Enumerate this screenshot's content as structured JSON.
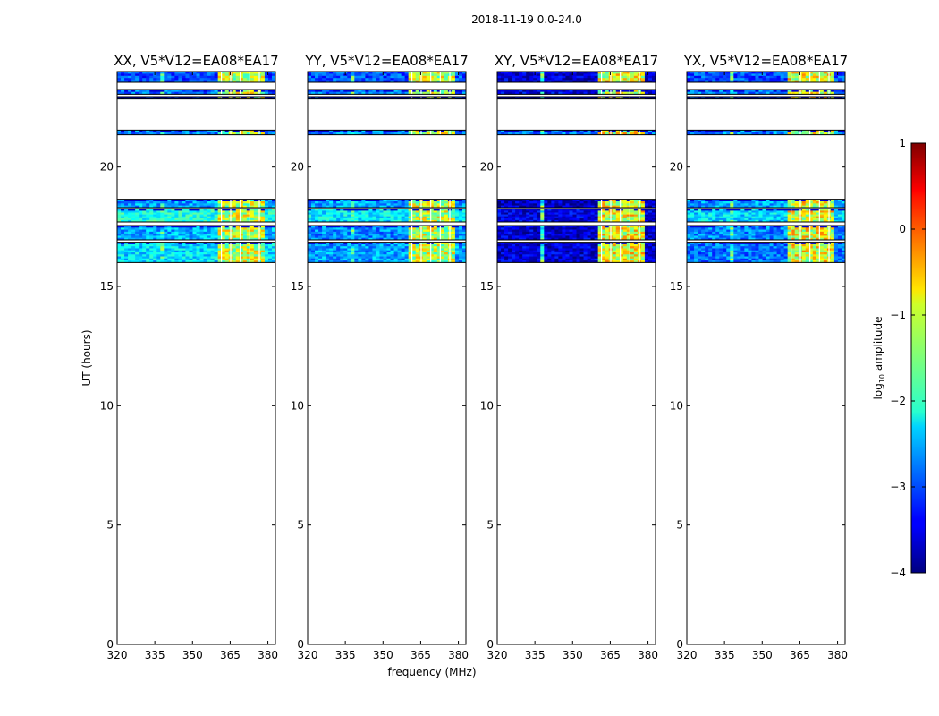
{
  "chart_data": {
    "type": "heatmap",
    "suptitle": "2018-11-19 0.0-24.0",
    "xlabel": "frequency (MHz)",
    "ylabel": "UT (hours)",
    "xlim": [
      320,
      383
    ],
    "ylim": [
      0,
      24
    ],
    "xticks": [
      "320",
      "335",
      "350",
      "365",
      "380"
    ],
    "yticks": [
      "0",
      "5",
      "10",
      "15",
      "20"
    ],
    "colormap": "jet",
    "colorbar": {
      "label": "log10 amplitude",
      "label_base": "log",
      "label_sub": "10",
      "label_rest": " amplitude",
      "range": [
        -4,
        1
      ],
      "ticks": [
        "1",
        "0",
        "−1",
        "−2",
        "−3",
        "−4"
      ]
    },
    "panels": [
      {
        "title": "XX, V5*V12=EA08*EA17",
        "pol": "XX",
        "baseline": "V5*V12=EA08*EA17"
      },
      {
        "title": "YY, V5*V12=EA08*EA17",
        "pol": "YY",
        "baseline": "V5*V12=EA08*EA17"
      },
      {
        "title": "XY, V5*V12=EA08*EA17",
        "pol": "XY",
        "baseline": "V5*V12=EA08*EA17"
      },
      {
        "title": "YX, V5*V12=EA08*EA17",
        "pol": "YX",
        "baseline": "V5*V12=EA08*EA17"
      }
    ],
    "time_bands_hours": [
      {
        "start": 23.55,
        "end": 24.0,
        "base_log_amp": [
          -3.0,
          -3.0,
          -3.6,
          -3.0
        ]
      },
      {
        "start": 23.05,
        "end": 23.25,
        "base_log_amp": [
          -2.8,
          -2.8,
          -3.5,
          -2.8
        ]
      },
      {
        "start": 22.85,
        "end": 22.95,
        "base_log_amp": [
          -3.2,
          -3.2,
          -3.6,
          -3.2
        ]
      },
      {
        "start": 21.35,
        "end": 21.55,
        "base_log_amp": [
          -2.7,
          -2.7,
          -2.8,
          -2.7
        ]
      },
      {
        "start": 18.3,
        "end": 18.65,
        "base_log_amp": [
          -2.6,
          -2.6,
          -3.7,
          -2.6
        ]
      },
      {
        "start": 17.7,
        "end": 18.25,
        "base_log_amp": [
          -2.0,
          -2.2,
          -3.5,
          -2.3
        ]
      },
      {
        "start": 16.95,
        "end": 17.55,
        "base_log_amp": [
          -2.5,
          -2.7,
          -3.6,
          -2.7
        ]
      },
      {
        "start": 16.0,
        "end": 16.85,
        "base_log_amp": [
          -2.3,
          -2.6,
          -3.6,
          -2.8
        ]
      }
    ],
    "rfi_channels_mhz": [
      {
        "start": 360,
        "end": 379,
        "log_amp": -1.2
      },
      {
        "start": 337,
        "end": 339,
        "log_amp": -2.0
      }
    ]
  }
}
